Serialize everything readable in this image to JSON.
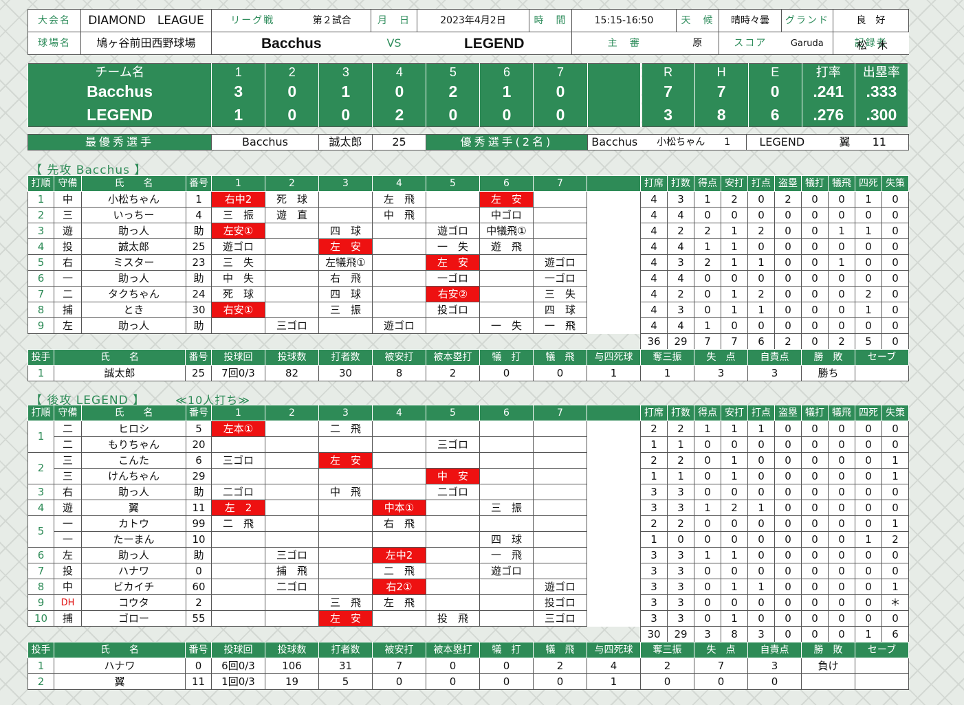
{
  "header": {
    "tournament_label": "大会名",
    "tournament": "DIAMOND　LEAGUE",
    "type_label": "リーグ戦",
    "game_no": "第２試合",
    "date_label": "月　日",
    "date": "2023年4月2日",
    "time_label": "時　間",
    "time": "15:15-16:50",
    "weather_label": "天　候",
    "weather": "晴時々曇",
    "ground_label": "グランド",
    "ground": "良　好",
    "venue_label": "球場名",
    "venue": "鳩ヶ谷前田西野球場",
    "team_home": "Bacchus",
    "vs": "VS",
    "team_away": "LEGEND",
    "umpire_label": "主　審",
    "umpire": "原",
    "score_label": "スコア",
    "scorer": "Garuda",
    "recorder_label": "記録者",
    "recorder": "松　木"
  },
  "scoreboard": {
    "headers": [
      "チーム名",
      "1",
      "2",
      "3",
      "4",
      "5",
      "6",
      "7",
      "",
      "R",
      "H",
      "E",
      "打率",
      "出塁率"
    ],
    "rows": [
      [
        "Bacchus",
        "3",
        "0",
        "1",
        "0",
        "2",
        "1",
        "0",
        "",
        "7",
        "7",
        "0",
        ".241",
        ".333"
      ],
      [
        "LEGEND",
        "1",
        "0",
        "0",
        "2",
        "0",
        "0",
        "0",
        "",
        "3",
        "8",
        "6",
        ".276",
        ".300"
      ]
    ]
  },
  "awards": {
    "mvp_label": "最優秀選手",
    "mvp_team": "Bacchus",
    "mvp_name": "誠太郎",
    "mvp_no": "25",
    "excellent_label": "優秀選手(2名)",
    "ex1_team": "Bacchus",
    "ex1_name": "小松ちゃん",
    "ex1_no": "1",
    "ex2_team": "LEGEND",
    "ex2_name": "翼",
    "ex2_no": "11"
  },
  "top": {
    "section_title": "【 先攻 Bacchus 】",
    "batting_headers": [
      "打順",
      "守備",
      "氏　　名",
      "番号",
      "1",
      "2",
      "3",
      "4",
      "5",
      "6",
      "7",
      "",
      "打席",
      "打数",
      "得点",
      "安打",
      "打点",
      "盗塁",
      "犠打",
      "犠飛",
      "四死",
      "失策"
    ],
    "rows": [
      {
        "o": "1",
        "p": "中",
        "name": "小松ちゃん",
        "no": "1",
        "ab": [
          "右中2",
          "死　球",
          "",
          "左　飛",
          "",
          "左　安",
          "",
          ""
        ],
        "st": [
          "4",
          "3",
          "1",
          "2",
          "0",
          "2",
          "0",
          "0",
          "1",
          "0"
        ]
      },
      {
        "o": "2",
        "p": "三",
        "name": "いっちー",
        "no": "4",
        "ab": [
          "三　振",
          "遊　直",
          "",
          "中　飛",
          "",
          "中ゴロ",
          "",
          ""
        ],
        "st": [
          "4",
          "4",
          "0",
          "0",
          "0",
          "0",
          "0",
          "0",
          "0",
          "0"
        ]
      },
      {
        "o": "3",
        "p": "遊",
        "name": "助っ人",
        "no": "助",
        "ab": [
          "左安①",
          "",
          "四　球",
          "",
          "遊ゴロ",
          "中犠飛①",
          "",
          ""
        ],
        "st": [
          "4",
          "2",
          "2",
          "1",
          "2",
          "0",
          "0",
          "1",
          "1",
          "0"
        ]
      },
      {
        "o": "4",
        "p": "投",
        "name": "誠太郎",
        "no": "25",
        "ab": [
          "遊ゴロ",
          "",
          "左　安",
          "",
          "一　失",
          "遊　飛",
          "",
          ""
        ],
        "st": [
          "4",
          "4",
          "1",
          "1",
          "0",
          "0",
          "0",
          "0",
          "0",
          "0"
        ]
      },
      {
        "o": "5",
        "p": "右",
        "name": "ミスター",
        "no": "23",
        "ab": [
          "三　失",
          "",
          "左犠飛①",
          "",
          "左　安",
          "",
          "遊ゴロ",
          ""
        ],
        "st": [
          "4",
          "3",
          "2",
          "1",
          "1",
          "0",
          "0",
          "1",
          "0",
          "0"
        ]
      },
      {
        "o": "6",
        "p": "一",
        "name": "助っ人",
        "no": "助",
        "ab": [
          "中　失",
          "",
          "右　飛",
          "",
          "一ゴロ",
          "",
          "一ゴロ",
          ""
        ],
        "st": [
          "4",
          "4",
          "0",
          "0",
          "0",
          "0",
          "0",
          "0",
          "0",
          "0"
        ]
      },
      {
        "o": "7",
        "p": "二",
        "name": "タクちゃん",
        "no": "24",
        "ab": [
          "死　球",
          "",
          "四　球",
          "",
          "右安②",
          "",
          "三　失",
          ""
        ],
        "st": [
          "4",
          "2",
          "0",
          "1",
          "2",
          "0",
          "0",
          "0",
          "2",
          "0"
        ]
      },
      {
        "o": "8",
        "p": "捕",
        "name": "とき",
        "no": "30",
        "ab": [
          "右安①",
          "",
          "三　振",
          "",
          "投ゴロ",
          "",
          "四　球",
          ""
        ],
        "st": [
          "4",
          "3",
          "0",
          "1",
          "1",
          "0",
          "0",
          "0",
          "1",
          "0"
        ]
      },
      {
        "o": "9",
        "p": "左",
        "name": "助っ人",
        "no": "助",
        "ab": [
          "",
          "三ゴロ",
          "",
          "遊ゴロ",
          "",
          "一　失",
          "一　飛",
          ""
        ],
        "st": [
          "4",
          "4",
          "1",
          "0",
          "0",
          "0",
          "0",
          "0",
          "0",
          "0"
        ]
      }
    ],
    "totals": [
      "36",
      "29",
      "7",
      "7",
      "6",
      "2",
      "0",
      "2",
      "5",
      "0"
    ],
    "pitching_headers": [
      "投手",
      "氏　　名",
      "番号",
      "投球回",
      "投球数",
      "打者数",
      "被安打",
      "被本塁打",
      "犠　打",
      "犠　飛",
      "与四死球",
      "奪三振",
      "失　点",
      "自責点",
      "勝　敗",
      "セーブ"
    ],
    "pitchers": [
      [
        "1",
        "誠太郎",
        "25",
        "7回0/3",
        "82",
        "30",
        "8",
        "2",
        "0",
        "0",
        "1",
        "1",
        "3",
        "3",
        "勝ち",
        ""
      ]
    ]
  },
  "bottom": {
    "section_title": "【 後攻 LEGEND 】",
    "note": "≪10人打ち≫",
    "rows": [
      {
        "o": "1",
        "p": "二",
        "name": "ヒロシ",
        "no": "5",
        "ab": [
          "左本①",
          "",
          "二　飛",
          "",
          "",
          "",
          "",
          ""
        ],
        "st": [
          "2",
          "2",
          "1",
          "1",
          "1",
          "0",
          "0",
          "0",
          "0",
          "0"
        ]
      },
      {
        "o": "",
        "p": "二",
        "name": "もりちゃん",
        "no": "20",
        "ab": [
          "",
          "",
          "",
          "",
          "三ゴロ",
          "",
          "",
          ""
        ],
        "st": [
          "1",
          "1",
          "0",
          "0",
          "0",
          "0",
          "0",
          "0",
          "0",
          "0"
        ]
      },
      {
        "o": "2",
        "p": "三",
        "name": "こんた",
        "no": "6",
        "ab": [
          "三ゴロ",
          "",
          "左　安",
          "",
          "",
          "",
          "",
          ""
        ],
        "st": [
          "2",
          "2",
          "0",
          "1",
          "0",
          "0",
          "0",
          "0",
          "0",
          "1"
        ]
      },
      {
        "o": "",
        "p": "三",
        "name": "けんちゃん",
        "no": "29",
        "ab": [
          "",
          "",
          "",
          "",
          "中　安",
          "",
          "",
          ""
        ],
        "st": [
          "1",
          "1",
          "0",
          "1",
          "0",
          "0",
          "0",
          "0",
          "0",
          "1"
        ]
      },
      {
        "o": "3",
        "p": "右",
        "name": "助っ人",
        "no": "助",
        "ab": [
          "二ゴロ",
          "",
          "中　飛",
          "",
          "二ゴロ",
          "",
          "",
          ""
        ],
        "st": [
          "3",
          "3",
          "0",
          "0",
          "0",
          "0",
          "0",
          "0",
          "0",
          "0"
        ]
      },
      {
        "o": "4",
        "p": "遊",
        "name": "翼",
        "no": "11",
        "ab": [
          "左　2",
          "",
          "",
          "中本①",
          "",
          "三　振",
          "",
          ""
        ],
        "st": [
          "3",
          "3",
          "1",
          "2",
          "1",
          "0",
          "0",
          "0",
          "0",
          "0"
        ]
      },
      {
        "o": "5",
        "p": "一",
        "name": "カトウ",
        "no": "99",
        "ab": [
          "二　飛",
          "",
          "",
          "右　飛",
          "",
          "",
          "",
          ""
        ],
        "st": [
          "2",
          "2",
          "0",
          "0",
          "0",
          "0",
          "0",
          "0",
          "0",
          "1"
        ]
      },
      {
        "o": "",
        "p": "一",
        "name": "たーまん",
        "no": "10",
        "ab": [
          "",
          "",
          "",
          "",
          "",
          "四　球",
          "",
          ""
        ],
        "st": [
          "1",
          "0",
          "0",
          "0",
          "0",
          "0",
          "0",
          "0",
          "1",
          "2"
        ]
      },
      {
        "o": "6",
        "p": "左",
        "name": "助っ人",
        "no": "助",
        "ab": [
          "",
          "三ゴロ",
          "",
          "左中2",
          "",
          "一　飛",
          "",
          ""
        ],
        "st": [
          "3",
          "3",
          "1",
          "1",
          "0",
          "0",
          "0",
          "0",
          "0",
          "0"
        ]
      },
      {
        "o": "7",
        "p": "投",
        "name": "ハナワ",
        "no": "0",
        "ab": [
          "",
          "捕　飛",
          "",
          "二　飛",
          "",
          "遊ゴロ",
          "",
          ""
        ],
        "st": [
          "3",
          "3",
          "0",
          "0",
          "0",
          "0",
          "0",
          "0",
          "0",
          "0"
        ]
      },
      {
        "o": "8",
        "p": "中",
        "name": "ビカイチ",
        "no": "60",
        "ab": [
          "",
          "二ゴロ",
          "",
          "右2①",
          "",
          "",
          "遊ゴロ",
          ""
        ],
        "st": [
          "3",
          "3",
          "0",
          "1",
          "1",
          "0",
          "0",
          "0",
          "0",
          "1"
        ]
      },
      {
        "o": "9",
        "p": "DH",
        "name": "コウタ",
        "no": "2",
        "ab": [
          "",
          "",
          "三　飛",
          "左　飛",
          "",
          "",
          "投ゴロ",
          ""
        ],
        "st": [
          "3",
          "3",
          "0",
          "0",
          "0",
          "0",
          "0",
          "0",
          "0",
          "＊"
        ]
      },
      {
        "o": "10",
        "p": "捕",
        "name": "ゴロー",
        "no": "55",
        "ab": [
          "",
          "",
          "左　安",
          "",
          "投　飛",
          "",
          "三ゴロ",
          ""
        ],
        "st": [
          "3",
          "3",
          "0",
          "1",
          "0",
          "0",
          "0",
          "0",
          "0",
          "0"
        ]
      }
    ],
    "totals": [
      "30",
      "29",
      "3",
      "8",
      "3",
      "0",
      "0",
      "0",
      "1",
      "6"
    ],
    "pitchers": [
      [
        "1",
        "ハナワ",
        "0",
        "6回0/3",
        "106",
        "31",
        "7",
        "0",
        "0",
        "2",
        "4",
        "2",
        "7",
        "3",
        "負け",
        ""
      ],
      [
        "2",
        "翼",
        "11",
        "1回0/3",
        "19",
        "5",
        "0",
        "0",
        "0",
        "0",
        "1",
        "0",
        "0",
        "0",
        "",
        ""
      ]
    ]
  }
}
